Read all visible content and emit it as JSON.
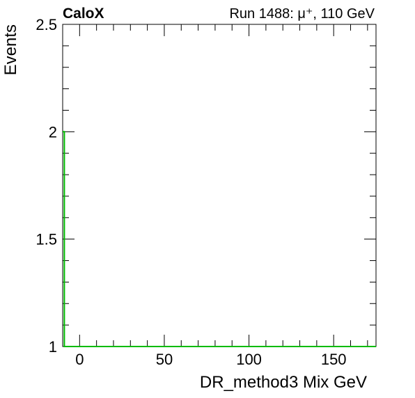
{
  "chart_data": {
    "type": "line",
    "title": "",
    "experiment_label": "CaloX",
    "run_label": "Run 1488: μ⁺, 110 GeV",
    "xlabel": "DR_method3 Mix GeV",
    "ylabel": "Events",
    "xlim": [
      -10,
      175
    ],
    "ylim": [
      1,
      2.5
    ],
    "x_ticks": [
      0,
      50,
      100,
      150
    ],
    "x_tick_labels": [
      "0",
      "50",
      "100",
      "150"
    ],
    "y_ticks": [
      1,
      1.5,
      2,
      2.5
    ],
    "y_tick_labels": [
      "1",
      "1.5",
      "2",
      "2.5"
    ],
    "grid": false,
    "series": [
      {
        "color": "#00bb00",
        "x": [
          -10,
          -9.0,
          -9.0,
          175
        ],
        "y": [
          2,
          2,
          1,
          1
        ]
      }
    ]
  }
}
